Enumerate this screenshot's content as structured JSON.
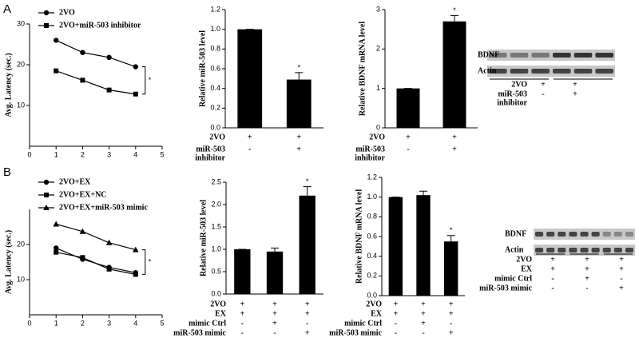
{
  "panels": [
    "A",
    "B"
  ],
  "chart_data": [
    {
      "type": "line",
      "y_label": "Avg. Latency (sec.)",
      "x": [
        1,
        2,
        3,
        4
      ],
      "xlim": [
        0,
        5
      ],
      "xticks": [
        0,
        1,
        2,
        3,
        4,
        5
      ],
      "ylim": [
        0,
        30
      ],
      "yticks": [
        10,
        20,
        30
      ],
      "annotation": "*",
      "series": [
        {
          "name": "2VO",
          "color": "#000000",
          "marker": "circle",
          "values": [
            26,
            23,
            21.8,
            19.5
          ]
        },
        {
          "name": "2VO+miR-503 inhibitor",
          "color": "#000000",
          "marker": "square",
          "values": [
            18.5,
            16.2,
            13.8,
            12.8
          ]
        }
      ]
    },
    {
      "type": "bar",
      "y_label": "Relative miR-503 level",
      "color": "#000000",
      "values": [
        1.0,
        0.49
      ],
      "errors": [
        0,
        0.07
      ],
      "annotation": "*",
      "annotation_index": 1,
      "ylim": [
        0,
        1.2
      ],
      "yticks": [
        {
          "value": 0,
          "label": "0.0"
        },
        {
          "value": 0.2,
          "label": "0.2"
        },
        {
          "value": 0.4,
          "label": "0.4"
        },
        {
          "value": 0.6,
          "label": "0.6"
        },
        {
          "value": 0.8,
          "label": "0.8"
        },
        {
          "value": 1.0,
          "label": "1.0"
        },
        {
          "value": 1.2,
          "label": "1.2"
        }
      ],
      "conditions": [
        {
          "label": [
            "2VO"
          ],
          "signs": [
            "+",
            "+"
          ]
        },
        {
          "label": [
            "miR-503",
            "inhibitor"
          ],
          "signs": [
            "-",
            "+"
          ]
        }
      ]
    },
    {
      "type": "bar",
      "y_label": "Relative BDNF mRNA level",
      "color": "#000000",
      "values": [
        1.0,
        2.7
      ],
      "errors": [
        0,
        0.15
      ],
      "annotation": "*",
      "annotation_index": 1,
      "ylim": [
        0,
        3
      ],
      "yticks": [
        0,
        1,
        2,
        3
      ],
      "conditions": [
        {
          "label": [
            "2VO"
          ],
          "signs": [
            "+",
            "+"
          ]
        },
        {
          "label": [
            "miR-503",
            "inhibitor"
          ],
          "signs": [
            "-",
            "+"
          ]
        }
      ]
    },
    {
      "type": "line",
      "y_label": "Avg. Latency (sec.)",
      "x": [
        1,
        2,
        3,
        4
      ],
      "xlim": [
        0,
        5
      ],
      "xticks": [
        0,
        1,
        2,
        3,
        4,
        5
      ],
      "ylim": [
        0,
        30
      ],
      "yticks": [
        10,
        20
      ],
      "annotation": "*",
      "series": [
        {
          "name": "2VO+EX",
          "color": "#000000",
          "marker": "circle",
          "values": [
            19,
            15.8,
            13.5,
            12
          ]
        },
        {
          "name": "2VO+EX+NC",
          "color": "#000000",
          "marker": "square",
          "values": [
            17.8,
            16.3,
            13,
            11.5
          ]
        },
        {
          "name": "2VO+EX+miR-503 mimic",
          "color": "#000000",
          "marker": "triangle",
          "values": [
            25.8,
            23.7,
            20.5,
            18.5
          ]
        }
      ]
    },
    {
      "type": "bar",
      "y_label": "Relative miR-503 level",
      "color": "#000000",
      "values": [
        1.0,
        0.95,
        2.2
      ],
      "errors": [
        0,
        0.08,
        0.2
      ],
      "annotation": "*",
      "annotation_index": 2,
      "ylim": [
        0,
        2.5
      ],
      "yticks": [
        {
          "value": 0,
          "label": "0.0"
        },
        {
          "value": 0.5,
          "label": "0.5"
        },
        {
          "value": 1.0,
          "label": "1.0"
        },
        {
          "value": 1.5,
          "label": "1.5"
        },
        {
          "value": 2.0,
          "label": "2.0"
        },
        {
          "value": 2.5,
          "label": "2.5"
        }
      ],
      "conditions": [
        {
          "label": [
            "2VO"
          ],
          "signs": [
            "+",
            "+",
            "+"
          ]
        },
        {
          "label": [
            "EX"
          ],
          "signs": [
            "+",
            "+",
            "+"
          ]
        },
        {
          "label": [
            "mimic Ctrl"
          ],
          "signs": [
            "-",
            "+",
            "-"
          ]
        },
        {
          "label": [
            "miR-503 mimic"
          ],
          "signs": [
            "-",
            "-",
            "+"
          ]
        }
      ]
    },
    {
      "type": "bar",
      "y_label": "Relative BDNF mRNA level",
      "color": "#000000",
      "values": [
        1.0,
        1.02,
        0.55
      ],
      "errors": [
        0,
        0.04,
        0.06
      ],
      "annotation": "*",
      "annotation_index": 2,
      "ylim": [
        0,
        1.2
      ],
      "yticks": [
        {
          "value": 0,
          "label": "0.0"
        },
        {
          "value": 0.2,
          "label": "0.2"
        },
        {
          "value": 0.4,
          "label": "0.4"
        },
        {
          "value": 0.6,
          "label": "0.6"
        },
        {
          "value": 0.8,
          "label": "0.8"
        },
        {
          "value": 1.0,
          "label": "1.0"
        },
        {
          "value": 1.2,
          "label": "1.2"
        }
      ],
      "conditions": [
        {
          "label": [
            "2VO"
          ],
          "signs": [
            "+",
            "+",
            "+"
          ]
        },
        {
          "label": [
            "EX"
          ],
          "signs": [
            "+",
            "+",
            "+"
          ]
        },
        {
          "label": [
            "mimic Ctrl"
          ],
          "signs": [
            "-",
            "+",
            "-"
          ]
        },
        {
          "label": [
            "miR-503 mimic"
          ],
          "signs": [
            "-",
            "-",
            "+"
          ]
        }
      ]
    }
  ],
  "blots": [
    {
      "bands": [
        "BDNF",
        "Actin"
      ],
      "conditions": [
        {
          "label": [
            "2VO"
          ],
          "signs": [
            "+",
            "+"
          ]
        },
        {
          "label": [
            "miR-503",
            "inhibitor"
          ],
          "signs": [
            "-",
            "+"
          ]
        }
      ]
    },
    {
      "bands": [
        "BDNF",
        "Actin"
      ],
      "conditions": [
        {
          "label": [
            "2VO"
          ],
          "signs": [
            "+",
            "+",
            "+"
          ]
        },
        {
          "label": [
            "EX"
          ],
          "signs": [
            "+",
            "+",
            "+"
          ]
        },
        {
          "label": [
            "mimic Ctrl"
          ],
          "signs": [
            "-",
            "+",
            "-"
          ]
        },
        {
          "label": [
            "miR-503 mimic"
          ],
          "signs": [
            "-",
            "-",
            "+"
          ]
        }
      ]
    }
  ]
}
